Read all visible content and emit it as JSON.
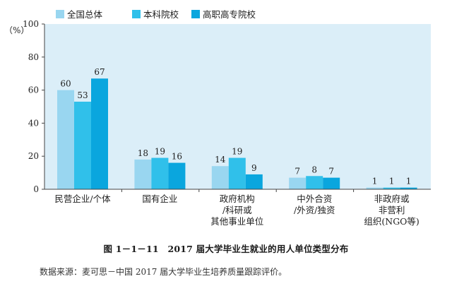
{
  "chart_data": {
    "type": "bar",
    "ylabel": "（%）",
    "ylim": [
      0,
      100
    ],
    "yticks": [
      0,
      20,
      40,
      60,
      80,
      100
    ],
    "legend_position": "top-left",
    "categories": [
      [
        "民营企业/个体"
      ],
      [
        "国有企业"
      ],
      [
        "政府机构",
        "/科研或",
        "其他事业单位"
      ],
      [
        "中外合资",
        "/外资/独资"
      ],
      [
        "非政府或",
        "非营利",
        "组织(NGO等)"
      ]
    ],
    "series": [
      {
        "name": "全国总体",
        "color": "#99d6f0",
        "values": [
          60,
          18,
          14,
          7,
          1
        ]
      },
      {
        "name": "本科院校",
        "color": "#30c0ea",
        "values": [
          53,
          19,
          19,
          8,
          1
        ]
      },
      {
        "name": "高职高专院校",
        "color": "#0aa6de",
        "values": [
          67,
          16,
          9,
          7,
          1
        ]
      }
    ]
  },
  "caption": "图 1－1－11　2017 届大学毕业生就业的用人单位类型分布",
  "source_note": "数据来源：麦可思－中国 2017 届大学毕业生培养质量跟踪评价。",
  "colors": {
    "plot_background": "#dbeef8",
    "axis": "#444444"
  }
}
